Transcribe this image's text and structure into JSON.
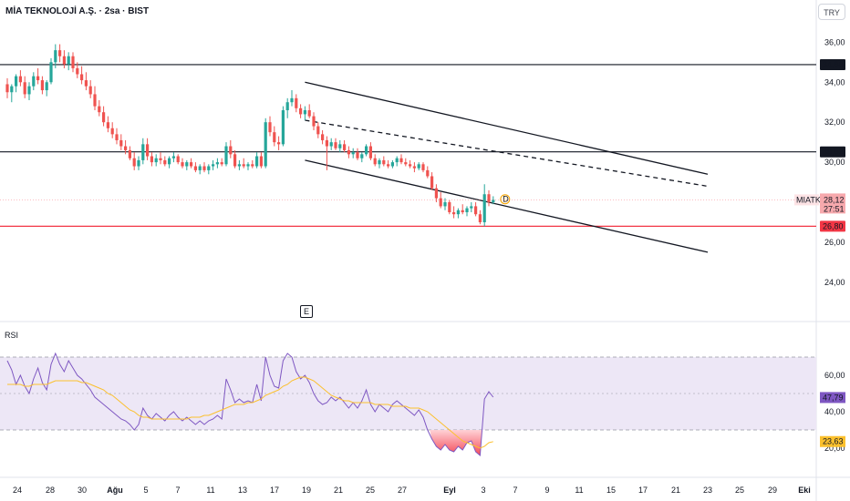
{
  "header": {
    "title": "MİA TEKNOLOJİ A.Ş. · 2sa · BIST",
    "currency": "TRY"
  },
  "colors": {
    "up": "#26a69a",
    "down": "#ef5350",
    "rsi_line": "#7e57c2",
    "rsi_ma": "#fbc02d",
    "rsi_band": "#ede7f6",
    "support_red": "#f23645",
    "level_black": "#131722"
  },
  "price_axis": {
    "ticks": [
      "36,00",
      "34,00",
      "32,00",
      "30,00",
      "26,00",
      "24,00"
    ],
    "level_labels": [
      {
        "text": "34,88",
        "value": 34.88,
        "style": "black"
      },
      {
        "text": "30,52",
        "value": 30.52,
        "style": "black"
      },
      {
        "text": "26,80",
        "value": 26.8,
        "style": "red"
      }
    ],
    "current": {
      "symbol": "MIATK",
      "price": "28,12",
      "countdown": "27:51",
      "value": 28.12
    }
  },
  "rsi": {
    "label": "RSI",
    "ticks": [
      "60,00",
      "40,00",
      "20,00"
    ],
    "value_label": "47,79",
    "value": 47.79,
    "ma_label": "23,63",
    "ma_value": 23.63,
    "upper_band": 70,
    "middle": 50,
    "lower_band": 30
  },
  "time_axis": {
    "labels": [
      "24",
      "28",
      "30",
      "Ağu",
      "5",
      "7",
      "11",
      "13",
      "17",
      "19",
      "21",
      "25",
      "27",
      "Eyl",
      "3",
      "7",
      "9",
      "11",
      "15",
      "17",
      "21",
      "23",
      "25",
      "29",
      "Eki"
    ]
  },
  "markers": {
    "earnings": "E",
    "dividend": "D"
  },
  "chart_data": {
    "type": "candlestick",
    "ohlc": [
      [
        33.9,
        34.2,
        33.2,
        33.5
      ],
      [
        33.5,
        33.9,
        33.0,
        33.8
      ],
      [
        33.8,
        34.4,
        33.5,
        34.3
      ],
      [
        34.3,
        34.6,
        33.8,
        34.0
      ],
      [
        34.0,
        34.3,
        33.2,
        33.4
      ],
      [
        33.4,
        34.0,
        33.1,
        33.8
      ],
      [
        33.8,
        34.5,
        33.6,
        34.3
      ],
      [
        34.3,
        34.7,
        33.9,
        34.1
      ],
      [
        34.1,
        34.3,
        33.4,
        33.6
      ],
      [
        33.6,
        34.1,
        33.3,
        34.0
      ],
      [
        34.0,
        35.2,
        33.9,
        35.0
      ],
      [
        35.0,
        35.9,
        34.7,
        35.6
      ],
      [
        35.6,
        35.9,
        35.0,
        35.3
      ],
      [
        35.3,
        35.6,
        34.7,
        34.9
      ],
      [
        34.9,
        35.5,
        34.6,
        35.3
      ],
      [
        35.3,
        35.5,
        34.5,
        34.7
      ],
      [
        34.7,
        35.0,
        34.2,
        34.4
      ],
      [
        34.4,
        34.8,
        33.9,
        34.1
      ],
      [
        34.1,
        34.5,
        33.6,
        33.8
      ],
      [
        33.8,
        34.1,
        33.2,
        33.4
      ],
      [
        33.4,
        33.8,
        32.6,
        32.8
      ],
      [
        32.8,
        33.1,
        32.3,
        32.5
      ],
      [
        32.5,
        32.8,
        31.8,
        32.0
      ],
      [
        32.0,
        32.3,
        31.5,
        31.7
      ],
      [
        31.7,
        32.0,
        31.2,
        31.4
      ],
      [
        31.4,
        31.7,
        30.9,
        31.1
      ],
      [
        31.1,
        31.4,
        30.6,
        30.8
      ],
      [
        30.8,
        31.1,
        30.4,
        30.6
      ],
      [
        30.6,
        30.8,
        30.1,
        30.2
      ],
      [
        30.2,
        30.5,
        29.6,
        29.8
      ],
      [
        29.8,
        30.3,
        29.6,
        30.1
      ],
      [
        30.1,
        31.2,
        29.9,
        30.9
      ],
      [
        30.9,
        31.2,
        30.1,
        30.3
      ],
      [
        30.3,
        30.5,
        29.8,
        30.0
      ],
      [
        30.0,
        30.4,
        29.8,
        30.2
      ],
      [
        30.2,
        30.5,
        29.9,
        30.1
      ],
      [
        30.1,
        30.3,
        29.8,
        29.9
      ],
      [
        29.9,
        30.3,
        29.7,
        30.2
      ],
      [
        30.2,
        30.5,
        30.0,
        30.3
      ],
      [
        30.3,
        30.4,
        29.9,
        30.0
      ],
      [
        30.0,
        30.2,
        29.7,
        29.8
      ],
      [
        29.8,
        30.1,
        29.6,
        30.0
      ],
      [
        30.0,
        30.2,
        29.7,
        29.8
      ],
      [
        29.8,
        30.0,
        29.5,
        29.6
      ],
      [
        29.6,
        29.9,
        29.4,
        29.8
      ],
      [
        29.8,
        30.0,
        29.5,
        29.6
      ],
      [
        29.6,
        29.9,
        29.4,
        29.8
      ],
      [
        29.8,
        30.1,
        29.6,
        29.9
      ],
      [
        29.9,
        30.2,
        29.7,
        30.0
      ],
      [
        30.0,
        30.2,
        29.8,
        29.9
      ],
      [
        29.9,
        31.0,
        29.8,
        30.8
      ],
      [
        30.8,
        31.1,
        30.2,
        30.4
      ],
      [
        30.4,
        30.6,
        29.7,
        29.8
      ],
      [
        29.8,
        30.1,
        29.6,
        29.9
      ],
      [
        29.9,
        30.2,
        29.7,
        29.8
      ],
      [
        29.8,
        30.0,
        29.6,
        29.9
      ],
      [
        29.9,
        30.1,
        29.7,
        29.8
      ],
      [
        29.8,
        30.5,
        29.7,
        30.3
      ],
      [
        30.3,
        30.5,
        29.7,
        29.8
      ],
      [
        29.8,
        32.2,
        29.7,
        32.0
      ],
      [
        32.0,
        32.3,
        31.3,
        31.5
      ],
      [
        31.5,
        31.8,
        30.8,
        31.0
      ],
      [
        31.0,
        31.3,
        30.6,
        30.9
      ],
      [
        30.9,
        32.8,
        30.8,
        32.6
      ],
      [
        32.6,
        33.2,
        32.2,
        33.0
      ],
      [
        33.0,
        33.6,
        32.8,
        33.2
      ],
      [
        33.2,
        33.4,
        32.5,
        32.7
      ],
      [
        32.7,
        32.9,
        32.2,
        32.4
      ],
      [
        32.4,
        32.8,
        32.1,
        32.6
      ],
      [
        32.6,
        32.9,
        32.2,
        32.3
      ],
      [
        32.3,
        32.5,
        31.6,
        31.8
      ],
      [
        31.8,
        32.0,
        31.2,
        31.4
      ],
      [
        31.4,
        31.6,
        30.9,
        31.1
      ],
      [
        31.1,
        31.3,
        29.6,
        30.8
      ],
      [
        30.8,
        31.2,
        30.6,
        31.0
      ],
      [
        31.0,
        31.2,
        30.6,
        30.7
      ],
      [
        30.7,
        31.1,
        30.5,
        30.9
      ],
      [
        30.9,
        31.1,
        30.5,
        30.6
      ],
      [
        30.6,
        30.8,
        30.2,
        30.4
      ],
      [
        30.4,
        30.7,
        30.2,
        30.5
      ],
      [
        30.5,
        30.7,
        30.1,
        30.2
      ],
      [
        30.2,
        30.5,
        30.0,
        30.4
      ],
      [
        30.4,
        30.9,
        30.3,
        30.8
      ],
      [
        30.8,
        31.0,
        30.1,
        30.2
      ],
      [
        30.2,
        30.4,
        29.8,
        29.9
      ],
      [
        29.9,
        30.2,
        29.7,
        30.1
      ],
      [
        30.1,
        30.3,
        29.8,
        29.9
      ],
      [
        29.9,
        30.1,
        29.7,
        29.8
      ],
      [
        29.8,
        30.1,
        29.7,
        30.0
      ],
      [
        30.0,
        30.3,
        29.8,
        30.2
      ],
      [
        30.2,
        30.4,
        29.9,
        30.0
      ],
      [
        30.0,
        30.2,
        29.8,
        29.9
      ],
      [
        29.9,
        30.1,
        29.7,
        29.8
      ],
      [
        29.8,
        30.0,
        29.5,
        29.7
      ],
      [
        29.7,
        30.0,
        29.6,
        29.9
      ],
      [
        29.9,
        30.0,
        29.5,
        29.6
      ],
      [
        29.6,
        29.8,
        29.2,
        29.3
      ],
      [
        29.3,
        29.5,
        28.6,
        28.7
      ],
      [
        28.7,
        28.9,
        28.0,
        28.2
      ],
      [
        28.2,
        28.5,
        27.7,
        27.8
      ],
      [
        27.8,
        28.2,
        27.6,
        28.0
      ],
      [
        28.0,
        28.1,
        27.4,
        27.5
      ],
      [
        27.5,
        27.8,
        27.2,
        27.4
      ],
      [
        27.4,
        27.7,
        27.2,
        27.6
      ],
      [
        27.6,
        27.9,
        27.4,
        27.5
      ],
      [
        27.5,
        27.8,
        27.3,
        27.7
      ],
      [
        27.7,
        28.0,
        27.5,
        27.8
      ],
      [
        27.8,
        28.0,
        27.3,
        27.4
      ],
      [
        27.4,
        27.6,
        26.9,
        27.0
      ],
      [
        27.0,
        28.9,
        26.8,
        28.4
      ],
      [
        28.4,
        28.6,
        27.8,
        28.0
      ],
      [
        28.0,
        28.3,
        27.9,
        28.12
      ]
    ],
    "rsi": [
      68,
      63,
      55,
      60,
      54,
      50,
      58,
      64,
      56,
      52,
      66,
      72,
      66,
      62,
      68,
      64,
      60,
      58,
      55,
      52,
      48,
      46,
      44,
      42,
      40,
      38,
      36,
      35,
      33,
      30,
      33,
      42,
      38,
      36,
      39,
      37,
      35,
      38,
      40,
      37,
      35,
      37,
      35,
      33,
      35,
      33,
      35,
      36,
      38,
      36,
      58,
      52,
      45,
      47,
      45,
      46,
      45,
      55,
      46,
      70,
      60,
      54,
      53,
      68,
      72,
      70,
      62,
      58,
      60,
      56,
      50,
      46,
      44,
      45,
      48,
      46,
      48,
      45,
      42,
      45,
      42,
      46,
      52,
      44,
      40,
      44,
      42,
      40,
      44,
      46,
      44,
      42,
      40,
      38,
      41,
      37,
      30,
      25,
      21,
      19,
      22,
      19,
      18,
      21,
      19,
      23,
      24,
      18,
      16,
      47,
      51,
      48
    ],
    "rsi_ma": [
      55,
      55,
      55,
      55,
      54,
      54,
      55,
      55,
      55,
      55,
      56,
      57,
      57,
      57,
      57,
      57,
      57,
      56,
      56,
      55,
      54,
      53,
      52,
      50,
      49,
      47,
      45,
      43,
      41,
      40,
      38,
      37,
      37,
      36,
      36,
      36,
      36,
      36,
      36,
      36,
      36,
      36,
      37,
      37,
      37,
      38,
      38,
      39,
      40,
      41,
      42,
      43,
      44,
      44,
      44,
      45,
      45,
      46,
      47,
      49,
      50,
      51,
      52,
      54,
      55,
      57,
      58,
      59,
      59,
      58,
      57,
      55,
      53,
      51,
      49,
      48,
      47,
      46,
      46,
      45,
      45,
      45,
      45,
      45,
      44,
      44,
      44,
      44,
      43,
      43,
      43,
      43,
      42,
      42,
      42,
      41,
      40,
      38,
      36,
      34,
      32,
      30,
      28,
      26,
      24,
      23,
      22,
      21,
      20,
      21,
      23,
      23.6
    ],
    "levels": [
      34.88,
      30.52,
      26.8
    ],
    "channel": {
      "upper": {
        "from": [
          68,
          34.0
        ],
        "to": [
          160,
          29.4
        ]
      },
      "middle": {
        "from": [
          68,
          32.1
        ],
        "to": [
          160,
          28.8
        ]
      },
      "lower": {
        "from": [
          68,
          30.1
        ],
        "to": [
          160,
          25.5
        ]
      }
    },
    "price_range": [
      22.4,
      37.2
    ],
    "rsi_range": [
      5,
      85
    ]
  }
}
